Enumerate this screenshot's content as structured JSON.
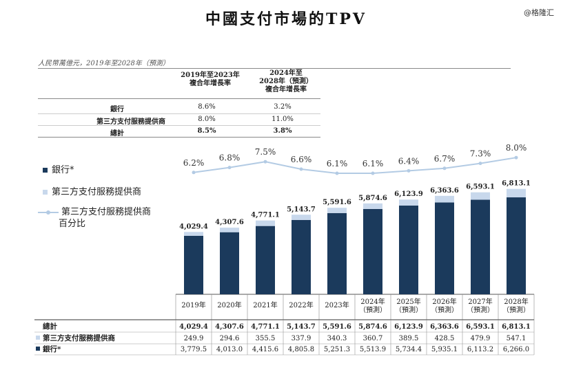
{
  "title": "中國支付市場的TPV",
  "watermark": "@格隆汇",
  "unit_note": "人民幣萬億元，2019年至2028年（預測）",
  "cagr_table": {
    "head1": "2019年至2023年\n複合年增長率",
    "head2": "2024年至\n2028年（預測）\n複合年增長率",
    "rows": [
      {
        "label": "銀行",
        "v1": "8.6%",
        "v2": "3.2%"
      },
      {
        "label": "第三方支付服務提供商",
        "v1": "8.0%",
        "v2": "11.0%"
      },
      {
        "label": "總計",
        "v1": "8.5%",
        "v2": "3.8%"
      }
    ]
  },
  "legend": {
    "bank": "銀行*",
    "third_party": "第三方支付服務提供商",
    "pct_line1": "第三方支付服務提供商",
    "pct_line2": "百分比"
  },
  "colors": {
    "bank": "#1b3a5c",
    "third_party": "#c8d8ec",
    "line": "#b3cbe4"
  },
  "chart_data": {
    "type": "bar",
    "stacked": true,
    "categories": [
      "2019年",
      "2020年",
      "2021年",
      "2022年",
      "2023年",
      "2024年（預測）",
      "2025年（預測）",
      "2026年（預測）",
      "2027年（預測）",
      "2028年（預測）"
    ],
    "category_lines": [
      [
        "2019年"
      ],
      [
        "2020年"
      ],
      [
        "2021年"
      ],
      [
        "2022年"
      ],
      [
        "2023年"
      ],
      [
        "2024年",
        "（預測）"
      ],
      [
        "2025年",
        "（預測）"
      ],
      [
        "2026年",
        "（預測）"
      ],
      [
        "2027年",
        "（預測）"
      ],
      [
        "2028年",
        "（預測）"
      ]
    ],
    "series": [
      {
        "name": "銀行*",
        "values": [
          3779.5,
          4013.0,
          4415.6,
          4805.8,
          5251.3,
          5513.9,
          5734.4,
          5935.1,
          6113.2,
          6266.0
        ]
      },
      {
        "name": "第三方支付服務提供商",
        "values": [
          249.9,
          294.6,
          355.5,
          337.9,
          340.3,
          360.7,
          389.5,
          428.5,
          479.9,
          547.1
        ]
      }
    ],
    "totals": [
      4029.4,
      4307.6,
      4771.1,
      5143.7,
      5591.6,
      5874.6,
      6123.9,
      6363.6,
      6593.1,
      6813.1
    ],
    "total_labels": [
      "4,029.4",
      "4,307.6",
      "4,771.1",
      "5,143.7",
      "5,591.6",
      "5,874.6",
      "6,123.9",
      "6,363.6",
      "6,593.1",
      "6,813.1"
    ],
    "line_series": {
      "name": "第三方支付服務提供商百分比",
      "values": [
        6.2,
        6.8,
        7.5,
        6.6,
        6.1,
        6.1,
        6.4,
        6.7,
        7.3,
        8.0
      ],
      "labels": [
        "6.2%",
        "6.8%",
        "7.5%",
        "6.6%",
        "6.1%",
        "6.1%",
        "6.4%",
        "6.7%",
        "7.3%",
        "8.0%"
      ]
    }
  },
  "bottom_table": {
    "rows": [
      {
        "label": "總計",
        "values": [
          "4,029.4",
          "4,307.6",
          "4,771.1",
          "5,143.7",
          "5,591.6",
          "5,874.6",
          "6,123.9",
          "6,363.6",
          "6,593.1",
          "6,813.1"
        ],
        "bold": true
      },
      {
        "label": "第三方支付服務提供商",
        "values": [
          "249.9",
          "294.6",
          "355.5",
          "337.9",
          "340.3",
          "360.7",
          "389.5",
          "428.5",
          "479.9",
          "547.1"
        ],
        "bold": false
      },
      {
        "label": "銀行*",
        "values": [
          "3,779.5",
          "4,013.0",
          "4,415.6",
          "4,805.8",
          "5,251.3",
          "5,513.9",
          "5,734.4",
          "5,935.1",
          "6,113.2",
          "6,266.0"
        ],
        "bold": false
      }
    ]
  }
}
